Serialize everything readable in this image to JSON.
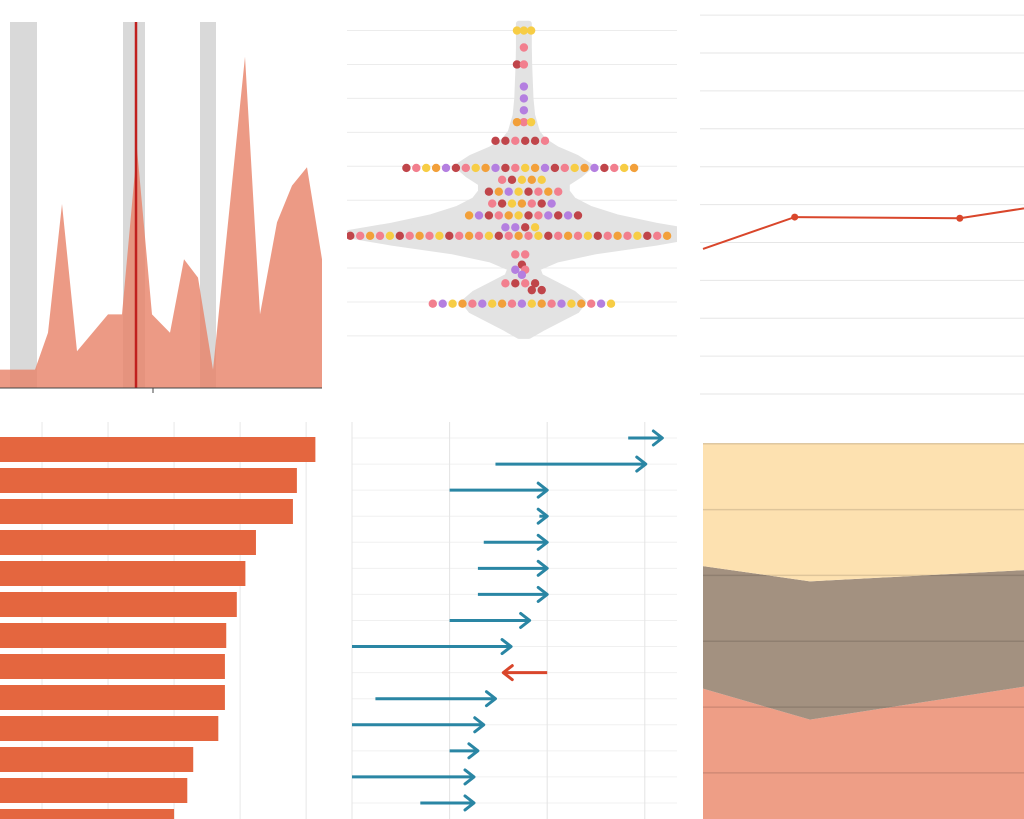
{
  "chart_data": [
    {
      "type": "area",
      "x": [
        0,
        3.5,
        4.8,
        6.2,
        7.7,
        10.8,
        12.2,
        13.7,
        15.2,
        17,
        18.4,
        19.8,
        21.3,
        24.5,
        26,
        27.7,
        29.2,
        30.7,
        32.2
      ],
      "values": [
        5,
        5,
        15,
        50,
        10,
        20,
        20,
        65,
        20,
        15,
        35,
        30,
        5,
        90,
        20,
        45,
        55,
        60,
        35
      ],
      "color": "#e8846a",
      "xlim": [
        0,
        32.2
      ],
      "ylim": [
        0,
        100
      ],
      "xticks": [
        15.3
      ],
      "bands": [
        [
          1,
          3.7
        ],
        [
          12.3,
          14.5
        ],
        [
          20,
          21.6
        ]
      ],
      "band_color": "#d9d9d9",
      "vline": 13.6,
      "vline_color": "#c0201e"
    },
    {
      "type": "beeswarm",
      "xlim": [
        0,
        100
      ],
      "ylim": [
        -0.8,
        10.9
      ],
      "yticks": [
        1,
        2,
        3,
        4,
        5,
        6,
        7,
        8,
        9,
        10
      ],
      "grid": true,
      "center": 53.6,
      "violin_color": "#e3e3e3",
      "violin": {
        "y": [
          10.2,
          9.5,
          9,
          8.5,
          8,
          7.5,
          7,
          6.75,
          6.5,
          6.25,
          6,
          5.75,
          5.5,
          5.25,
          5,
          4.75,
          4.5,
          4.25,
          4,
          3.75,
          3.5,
          3.25,
          3,
          2.75,
          2.5,
          2.25,
          2,
          1.75,
          1.5,
          1.25,
          1
        ],
        "width": [
          1.5,
          1.5,
          1.6,
          1.8,
          2,
          2.5,
          4,
          6,
          10,
          16,
          20,
          17,
          13,
          13,
          15,
          20,
          28,
          40,
          55,
          40,
          22,
          10,
          4,
          5,
          10,
          15,
          18,
          16,
          11,
          6,
          1.5
        ]
      },
      "series": [
        {
          "color": "#c0454a",
          "x": [
            51.5,
            45,
            48,
            54,
            57,
            18,
            33,
            48,
            63,
            78,
            50,
            43,
            55,
            47,
            59,
            43,
            55,
            64,
            70,
            54,
            1,
            16,
            31,
            46,
            61,
            76,
            91,
            53,
            51,
            57,
            56,
            59
          ],
          "values": [
            9,
            6.75,
            6.75,
            6.75,
            6.75,
            5.95,
            5.95,
            5.95,
            5.95,
            5.95,
            5.6,
            5.25,
            5.25,
            4.9,
            4.9,
            4.55,
            4.55,
            4.55,
            4.55,
            4.2,
            3.95,
            3.95,
            3.95,
            3.95,
            3.95,
            3.95,
            3.95,
            3.1,
            2.55,
            2.55,
            2.35,
            2.35
          ]
        },
        {
          "color": "#f27f8e",
          "x": [
            53.6,
            53.6,
            53.6,
            51,
            60,
            21,
            36,
            51,
            66,
            81,
            47,
            58,
            64,
            44,
            56,
            46,
            58,
            4,
            10,
            19,
            25,
            34,
            40,
            49,
            55,
            64,
            70,
            79,
            85,
            94,
            51,
            54,
            54,
            48,
            54,
            26,
            38,
            50,
            62,
            74
          ],
          "values": [
            9.5,
            9,
            7.3,
            6.75,
            6.75,
            5.95,
            5.95,
            5.95,
            5.95,
            5.95,
            5.6,
            5.25,
            5.25,
            4.9,
            4.9,
            4.55,
            4.55,
            3.95,
            3.95,
            3.95,
            3.95,
            3.95,
            3.95,
            3.95,
            3.95,
            3.95,
            3.95,
            3.95,
            3.95,
            3.95,
            3.4,
            3.4,
            2.95,
            2.55,
            2.55,
            1.95,
            1.95,
            1.95,
            1.95,
            1.95
          ]
        },
        {
          "color": "#f7cd45",
          "x": [
            51.5,
            53.6,
            55.8,
            55.8,
            24,
            39,
            54,
            69,
            84,
            53,
            59,
            52,
            50,
            52,
            57,
            13,
            28,
            43,
            58,
            73,
            88,
            32,
            44,
            56,
            68,
            80
          ],
          "values": [
            10,
            10,
            10,
            7.3,
            5.95,
            5.95,
            5.95,
            5.95,
            5.95,
            5.6,
            5.6,
            5.25,
            4.9,
            4.55,
            4.2,
            3.95,
            3.95,
            3.95,
            3.95,
            3.95,
            3.95,
            1.95,
            1.95,
            1.95,
            1.95,
            1.95
          ]
        },
        {
          "color": "#f2a03a",
          "x": [
            51.5,
            27,
            42,
            57,
            72,
            87,
            56,
            46,
            61,
            53,
            37,
            49,
            7,
            22,
            37,
            52,
            67,
            82,
            97,
            35,
            47,
            59,
            71
          ],
          "values": [
            7.3,
            5.95,
            5.95,
            5.95,
            5.95,
            5.95,
            5.6,
            5.25,
            5.25,
            4.9,
            4.55,
            4.55,
            3.95,
            3.95,
            3.95,
            3.95,
            3.95,
            3.95,
            3.95,
            1.95,
            1.95,
            1.95,
            1.95
          ]
        },
        {
          "color": "#b47fe0",
          "x": [
            53.6,
            53.6,
            53.6,
            30,
            45,
            60,
            75,
            49,
            62,
            40,
            61,
            67,
            48,
            51,
            51,
            53,
            29,
            41,
            53,
            65,
            77
          ],
          "values": [
            8.35,
            8,
            7.65,
            5.95,
            5.95,
            5.95,
            5.95,
            5.25,
            4.9,
            4.55,
            4.55,
            4.55,
            4.2,
            4.2,
            2.95,
            2.8,
            1.95,
            1.95,
            1.95,
            1.95,
            1.95
          ]
        }
      ]
    },
    {
      "type": "line",
      "x": [
        0,
        1,
        2.8,
        3.5
      ],
      "values": [
        3.83,
        4.67,
        4.64,
        4.9
      ],
      "markers": [
        1,
        2
      ],
      "color": "#d9462b",
      "xlim": [
        0,
        3.5
      ],
      "ylim": [
        0,
        10.4
      ],
      "yticks": [
        0,
        1,
        2,
        3,
        4,
        5,
        6,
        7,
        8,
        9,
        10
      ],
      "grid": true
    },
    {
      "type": "bar",
      "orientation": "horizontal",
      "categories": [
        null,
        null,
        null,
        null,
        null,
        null,
        null,
        null,
        null,
        null,
        null,
        null,
        null
      ],
      "values": [
        5.14,
        4.86,
        4.8,
        4.24,
        4.08,
        3.95,
        3.79,
        3.77,
        3.77,
        3.67,
        3.29,
        3.2,
        3.0
      ],
      "color": "#e4663f",
      "xlim": [
        0,
        5.21
      ],
      "xticks": [
        1,
        2,
        3,
        4,
        5
      ],
      "grid": true
    },
    {
      "type": "arrow",
      "categories": [
        null,
        null,
        null,
        null,
        null,
        null,
        null,
        null,
        null,
        null,
        null,
        null,
        null,
        null,
        null
      ],
      "start": [
        2.83,
        1.47,
        1.0,
        1.92,
        1.35,
        1.29,
        1.29,
        1.0,
        0,
        2.0,
        0.24,
        0,
        1.0,
        0,
        0.7
      ],
      "end": [
        3.18,
        3.01,
        2.0,
        2.0,
        2.0,
        2.0,
        2.0,
        1.82,
        1.63,
        1.55,
        1.47,
        1.35,
        1.29,
        1.25,
        1.25
      ],
      "increase_color": "#2a86a4",
      "decrease_color": "#d9462b",
      "xlim": [
        0,
        3.33
      ],
      "xticks": [
        0,
        1,
        2,
        3
      ],
      "grid": true
    },
    {
      "type": "stacked_area",
      "x": [
        0,
        1,
        3
      ],
      "xlim": [
        0,
        3
      ],
      "ylim": [
        0.3,
        6.33
      ],
      "yticks": [
        1,
        2,
        3,
        4,
        5,
        6
      ],
      "grid": true,
      "series": [
        {
          "color": "#ee9e86",
          "values": [
            2.28,
            1.81,
            2.31
          ]
        },
        {
          "color": "#a39180",
          "values": [
            1.86,
            2.1,
            1.77
          ]
        },
        {
          "color": "#fde1b0",
          "values": [
            1.87,
            2.1,
            1.93
          ]
        }
      ]
    }
  ]
}
